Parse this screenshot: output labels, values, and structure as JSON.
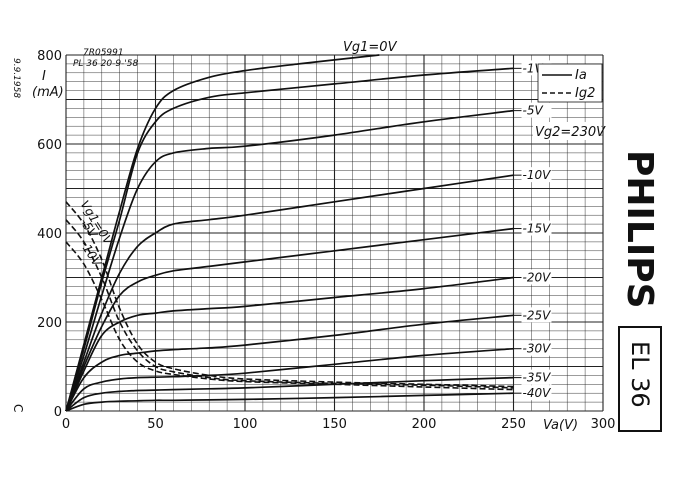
{
  "chart_data": {
    "type": "line",
    "title": "Vg1=0V",
    "ylabel": "I",
    "yunit": "(mA)",
    "xlabel": "Va(V)",
    "xlim": [
      0,
      300
    ],
    "ylim": [
      0,
      800
    ],
    "x_ticks": [
      "0",
      "50",
      "100",
      "150",
      "200",
      "250",
      "300"
    ],
    "y_ticks": [
      "0",
      "200",
      "400",
      "600",
      "800"
    ],
    "grid": true,
    "legend": {
      "position": "top-right",
      "entries": [
        {
          "label": "Ia",
          "style": "solid"
        },
        {
          "label": "Ig2",
          "style": "dashed"
        }
      ]
    },
    "screen_voltage_label": "Vg2=230V",
    "corner_date": "9.9.1958",
    "drawing_number": "7R05991",
    "drawing_ref": "PL 36  20-9-'58",
    "brand": "PHILIPS",
    "tube_type": "EL 36",
    "margin_mark": "C",
    "series": [
      {
        "name": "0V",
        "style": "solid",
        "x": [
          0,
          10,
          20,
          30,
          40,
          50,
          60,
          80,
          100,
          130,
          175
        ],
        "y": [
          0,
          150,
          300,
          450,
          590,
          680,
          720,
          750,
          765,
          780,
          800
        ]
      },
      {
        "name": "-1V",
        "style": "solid",
        "x": [
          0,
          10,
          20,
          30,
          40,
          50,
          60,
          80,
          100,
          150,
          200,
          250
        ],
        "y": [
          0,
          140,
          290,
          430,
          580,
          650,
          680,
          705,
          715,
          735,
          755,
          770
        ]
      },
      {
        "name": "-5V",
        "style": "solid",
        "x": [
          0,
          10,
          20,
          30,
          40,
          50,
          60,
          80,
          100,
          150,
          200,
          250
        ],
        "y": [
          0,
          125,
          260,
          390,
          500,
          560,
          580,
          590,
          595,
          620,
          650,
          675
        ]
      },
      {
        "name": "-10V",
        "style": "solid",
        "x": [
          0,
          10,
          20,
          30,
          40,
          50,
          60,
          80,
          100,
          150,
          200,
          250
        ],
        "y": [
          0,
          110,
          220,
          310,
          370,
          400,
          420,
          430,
          440,
          470,
          500,
          530
        ]
      },
      {
        "name": "-15V",
        "style": "solid",
        "x": [
          0,
          10,
          20,
          30,
          40,
          50,
          60,
          80,
          100,
          150,
          200,
          250
        ],
        "y": [
          0,
          100,
          190,
          260,
          290,
          305,
          315,
          325,
          335,
          360,
          385,
          410
        ]
      },
      {
        "name": "-20V",
        "style": "solid",
        "x": [
          0,
          10,
          20,
          30,
          40,
          50,
          60,
          80,
          100,
          150,
          200,
          250
        ],
        "y": [
          0,
          90,
          170,
          200,
          215,
          220,
          225,
          230,
          235,
          255,
          275,
          300
        ]
      },
      {
        "name": "-25V",
        "style": "solid",
        "x": [
          0,
          10,
          20,
          30,
          40,
          50,
          60,
          80,
          100,
          150,
          200,
          250
        ],
        "y": [
          0,
          75,
          110,
          125,
          130,
          135,
          138,
          142,
          148,
          170,
          195,
          215
        ]
      },
      {
        "name": "-30V",
        "style": "solid",
        "x": [
          0,
          10,
          20,
          30,
          40,
          50,
          60,
          80,
          100,
          150,
          200,
          250
        ],
        "y": [
          0,
          50,
          65,
          72,
          75,
          76,
          77,
          80,
          85,
          105,
          125,
          140
        ]
      },
      {
        "name": "-35V",
        "style": "solid",
        "x": [
          0,
          10,
          20,
          30,
          40,
          50,
          60,
          80,
          100,
          150,
          200,
          250
        ],
        "y": [
          0,
          30,
          40,
          44,
          46,
          47,
          48,
          50,
          52,
          60,
          68,
          75
        ]
      },
      {
        "name": "-40V",
        "style": "solid",
        "x": [
          0,
          10,
          20,
          30,
          40,
          50,
          60,
          80,
          100,
          150,
          200,
          250
        ],
        "y": [
          0,
          15,
          20,
          22,
          23,
          24,
          24,
          25,
          26,
          30,
          35,
          40
        ]
      },
      {
        "name": "Vg1=0V",
        "style": "dashed",
        "x": [
          0,
          10,
          20,
          30,
          40,
          50,
          60,
          80,
          100,
          150,
          200,
          250
        ],
        "y": [
          470,
          420,
          340,
          230,
          150,
          110,
          95,
          80,
          72,
          65,
          60,
          55
        ]
      },
      {
        "name": "-5V",
        "style": "dashed",
        "x": [
          0,
          10,
          20,
          30,
          40,
          50,
          60,
          80,
          100,
          150,
          200,
          250
        ],
        "y": [
          430,
          380,
          300,
          200,
          135,
          100,
          88,
          75,
          68,
          62,
          58,
          52
        ]
      },
      {
        "name": "-10V",
        "style": "dashed",
        "x": [
          0,
          10,
          20,
          30,
          40,
          50,
          60,
          80,
          100,
          150,
          200,
          250
        ],
        "y": [
          380,
          330,
          250,
          160,
          110,
          90,
          82,
          72,
          66,
          60,
          54,
          48
        ]
      }
    ]
  }
}
